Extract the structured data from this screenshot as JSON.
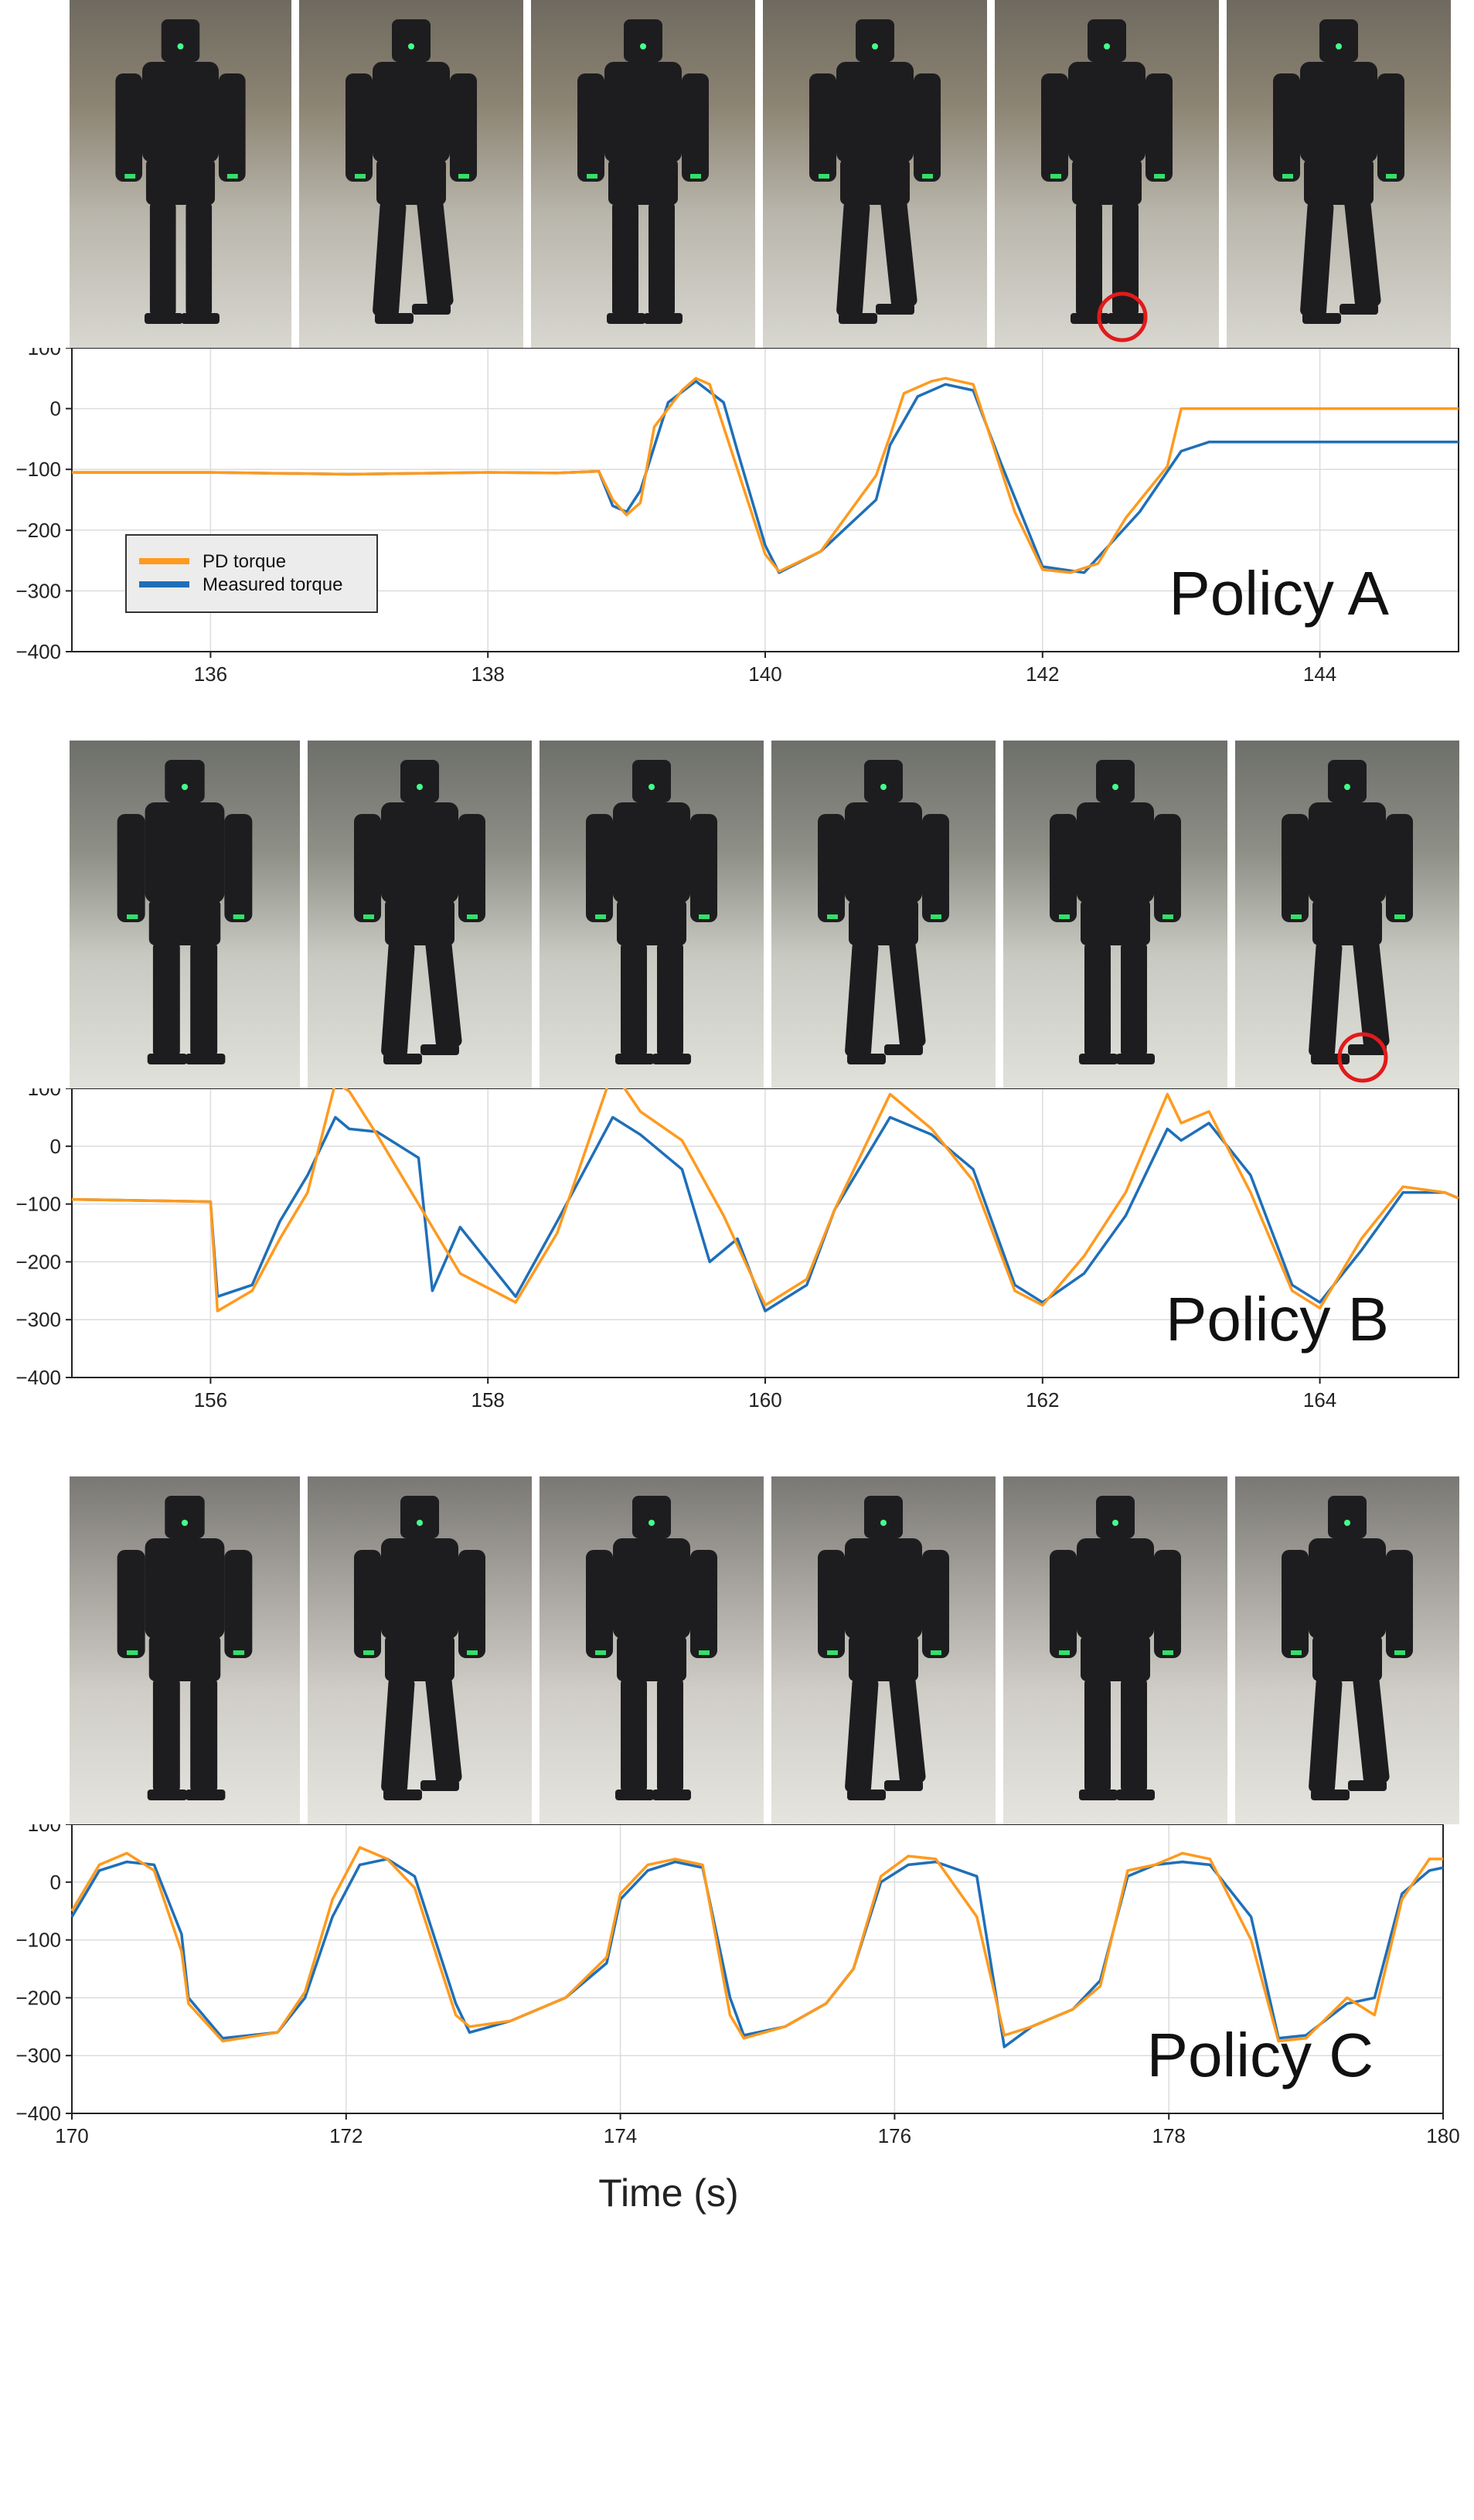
{
  "colors": {
    "pd_torque": "#ff9a1e",
    "measured_torque": "#1f6fb8",
    "highlight_circle": "#e21a1a",
    "grid": "#dcdcdc",
    "legend_bg": "#ececec"
  },
  "xlabel": "Time (s)",
  "panels": [
    {
      "id": "A",
      "frame_count": 6,
      "highlight_frame": 5,
      "chart_data": {
        "type": "line",
        "title": "Policy A",
        "xlim": [
          135,
          145
        ],
        "ylim": [
          -400,
          100
        ],
        "xticks": [
          136,
          138,
          140,
          142,
          144
        ],
        "yticks": [
          100,
          0,
          -100,
          -200,
          -300,
          -400
        ],
        "grid": true,
        "legend": {
          "placement": "lower-left",
          "entries": [
            "PD torque",
            "Measured torque"
          ]
        },
        "series": [
          {
            "name": "PD torque",
            "x": [
              135,
              136,
              137,
              138,
              138.5,
              138.8,
              138.9,
              139.0,
              139.1,
              139.2,
              139.4,
              139.5,
              139.6,
              139.8,
              140.0,
              140.1,
              140.4,
              140.8,
              140.9,
              141.0,
              141.2,
              141.3,
              141.5,
              141.8,
              142.0,
              142.2,
              142.4,
              142.6,
              142.9,
              143.0,
              143.2,
              143.3,
              145
            ],
            "y": [
              -105,
              -105,
              -108,
              -105,
              -106,
              -103,
              -150,
              -175,
              -155,
              -30,
              30,
              50,
              40,
              -100,
              -240,
              -268,
              -235,
              -110,
              -45,
              25,
              45,
              50,
              40,
              -170,
              -265,
              -270,
              -255,
              -180,
              -95,
              0,
              0,
              0,
              0
            ]
          },
          {
            "name": "Measured torque",
            "x": [
              135,
              136,
              137,
              138,
              138.5,
              138.8,
              138.9,
              139.0,
              139.1,
              139.3,
              139.5,
              139.7,
              139.8,
              140.0,
              140.1,
              140.4,
              140.8,
              140.9,
              141.1,
              141.3,
              141.5,
              141.7,
              142.0,
              142.3,
              142.5,
              142.7,
              143.0,
              143.2,
              145
            ],
            "y": [
              -105,
              -105,
              -108,
              -105,
              -106,
              -103,
              -160,
              -170,
              -135,
              10,
              45,
              10,
              -70,
              -225,
              -270,
              -235,
              -150,
              -60,
              20,
              40,
              30,
              -90,
              -260,
              -270,
              -220,
              -170,
              -70,
              -55,
              -55
            ]
          }
        ]
      }
    },
    {
      "id": "B",
      "frame_count": 6,
      "highlight_frame": 6,
      "chart_data": {
        "type": "line",
        "title": "Policy B",
        "xlim": [
          155,
          165
        ],
        "ylim": [
          -400,
          100
        ],
        "xticks": [
          156,
          158,
          160,
          162,
          164
        ],
        "yticks": [
          100,
          0,
          -100,
          -200,
          -300,
          -400
        ],
        "grid": true,
        "series": [
          {
            "name": "PD torque",
            "x": [
              155,
              156.0,
              156.05,
              156.3,
              156.5,
              156.7,
              156.9,
              157.0,
              157.2,
              157.5,
              157.8,
              158.2,
              158.5,
              158.9,
              159.1,
              159.4,
              159.7,
              160.0,
              160.3,
              160.5,
              160.9,
              161.2,
              161.5,
              161.8,
              162.0,
              162.3,
              162.6,
              162.9,
              163.0,
              163.2,
              163.5,
              163.8,
              164.0,
              164.3,
              164.6,
              164.9,
              165
            ],
            "y": [
              -92,
              -96,
              -285,
              -250,
              -160,
              -80,
              110,
              95,
              20,
              -100,
              -220,
              -270,
              -150,
              130,
              60,
              10,
              -120,
              -275,
              -230,
              -110,
              90,
              30,
              -60,
              -250,
              -275,
              -190,
              -80,
              90,
              40,
              60,
              -80,
              -250,
              -280,
              -160,
              -70,
              -80,
              -90
            ]
          },
          {
            "name": "Measured torque",
            "x": [
              155,
              156.0,
              156.05,
              156.3,
              156.5,
              156.7,
              156.9,
              157.0,
              157.2,
              157.5,
              157.6,
              157.8,
              158.2,
              158.5,
              158.9,
              159.1,
              159.4,
              159.6,
              159.8,
              160.0,
              160.3,
              160.5,
              160.9,
              161.2,
              161.5,
              161.8,
              162.0,
              162.3,
              162.6,
              162.9,
              163.0,
              163.2,
              163.5,
              163.8,
              164.0,
              164.3,
              164.6,
              164.9,
              165
            ],
            "y": [
              -92,
              -96,
              -260,
              -240,
              -130,
              -50,
              50,
              30,
              25,
              -20,
              -250,
              -140,
              -260,
              -130,
              50,
              20,
              -40,
              -200,
              -160,
              -285,
              -240,
              -110,
              50,
              20,
              -40,
              -240,
              -270,
              -220,
              -120,
              30,
              10,
              40,
              -50,
              -240,
              -270,
              -180,
              -80,
              -80,
              -90
            ]
          }
        ]
      }
    },
    {
      "id": "C",
      "frame_count": 6,
      "highlight_frame": 0,
      "chart_data": {
        "type": "line",
        "title": "Policy C",
        "xlim": [
          170,
          180
        ],
        "ylim": [
          -400,
          100
        ],
        "xticks": [
          170,
          172,
          174,
          176,
          178,
          180
        ],
        "yticks": [
          100,
          0,
          -100,
          -200,
          -300,
          -400
        ],
        "grid": true,
        "series": [
          {
            "name": "PD torque",
            "x": [
              170,
              170.2,
              170.4,
              170.6,
              170.8,
              170.85,
              171.1,
              171.5,
              171.7,
              171.9,
              172.1,
              172.3,
              172.5,
              172.8,
              172.9,
              173.2,
              173.6,
              173.9,
              174.0,
              174.2,
              174.4,
              174.6,
              174.8,
              174.9,
              175.2,
              175.5,
              175.7,
              175.9,
              176.1,
              176.3,
              176.6,
              176.8,
              177.0,
              177.3,
              177.5,
              177.7,
              177.9,
              178.1,
              178.3,
              178.6,
              178.8,
              179.0,
              179.3,
              179.5,
              179.7,
              179.9,
              180
            ],
            "y": [
              -50,
              30,
              50,
              20,
              -120,
              -210,
              -275,
              -260,
              -190,
              -30,
              60,
              40,
              -10,
              -230,
              -250,
              -240,
              -200,
              -130,
              -20,
              30,
              40,
              30,
              -230,
              -270,
              -250,
              -210,
              -150,
              10,
              45,
              40,
              -60,
              -265,
              -250,
              -220,
              -180,
              20,
              30,
              50,
              40,
              -100,
              -275,
              -270,
              -200,
              -230,
              -30,
              40,
              40
            ]
          },
          {
            "name": "Measured torque",
            "x": [
              170,
              170.2,
              170.4,
              170.6,
              170.8,
              170.85,
              171.1,
              171.5,
              171.7,
              171.9,
              172.1,
              172.3,
              172.5,
              172.8,
              172.9,
              173.2,
              173.6,
              173.9,
              174.0,
              174.2,
              174.4,
              174.6,
              174.8,
              174.9,
              175.2,
              175.5,
              175.7,
              175.9,
              176.1,
              176.3,
              176.6,
              176.8,
              177.0,
              177.3,
              177.5,
              177.7,
              177.9,
              178.1,
              178.3,
              178.6,
              178.8,
              179.0,
              179.3,
              179.5,
              179.7,
              179.9,
              180
            ],
            "y": [
              -60,
              20,
              35,
              30,
              -90,
              -200,
              -270,
              -260,
              -200,
              -60,
              30,
              40,
              10,
              -210,
              -260,
              -240,
              -200,
              -140,
              -30,
              20,
              35,
              25,
              -200,
              -265,
              -250,
              -210,
              -150,
              0,
              30,
              35,
              10,
              -285,
              -250,
              -220,
              -170,
              10,
              30,
              35,
              30,
              -60,
              -270,
              -265,
              -210,
              -200,
              -20,
              20,
              25
            ]
          }
        ]
      }
    }
  ]
}
